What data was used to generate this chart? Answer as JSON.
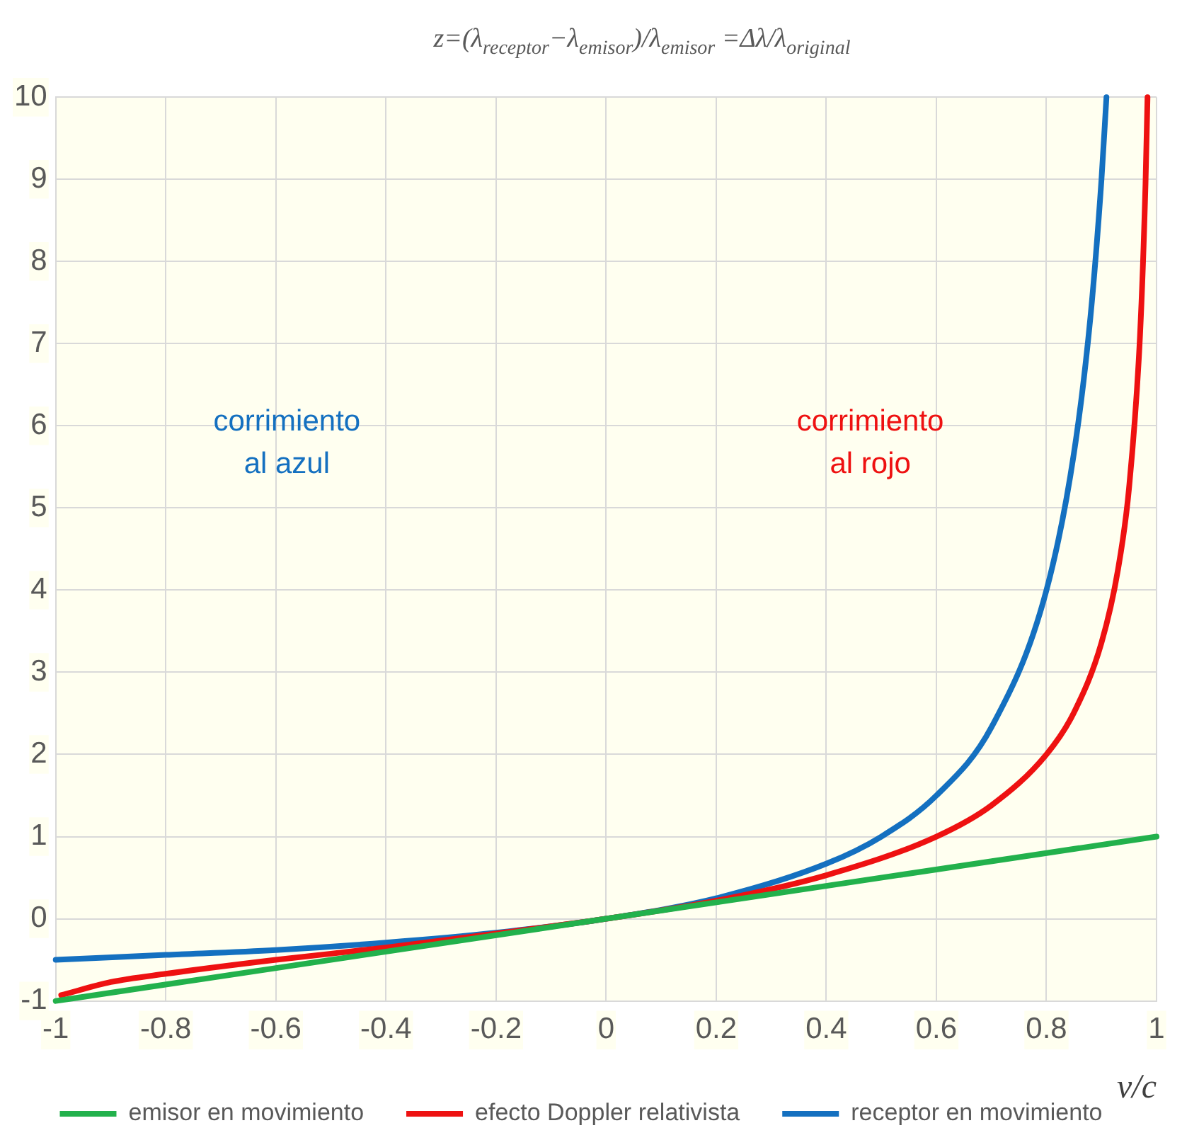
{
  "chart_data": {
    "type": "line",
    "title": "z=(λ$_{receptor}$−λ$_{emisor}$)/λ$_{emisor}$ =Δλ/λ$_{original}$",
    "xlabel": "v/c",
    "annotations": [
      "corrimiento\nal azul",
      "corrimiento\nal rojo"
    ],
    "xlim": [
      -1,
      1
    ],
    "xticks": [
      -1,
      -0.8,
      -0.6,
      -0.4,
      -0.2,
      0,
      0.2,
      0.4,
      0.6,
      0.8,
      1
    ],
    "ylim": [
      -1,
      10
    ],
    "yticks": [
      -1,
      0,
      1,
      2,
      3,
      4,
      5,
      6,
      7,
      8,
      9,
      10
    ],
    "grid": true,
    "legend": "bottom",
    "marker": "none",
    "line_style": "solid",
    "series": [
      {
        "name": "emisor en movimiento",
        "color": "#22b14c",
        "x": [
          -1,
          0,
          1
        ],
        "values": [
          -1,
          0,
          1
        ]
      },
      {
        "name": "efecto Doppler relativista",
        "color": "#ee1111",
        "x": [
          -0.99,
          -0.9,
          -0.8,
          -0.6,
          -0.4,
          -0.2,
          0,
          0.2,
          0.4,
          0.6,
          0.7,
          0.8,
          0.85,
          0.9,
          0.93,
          0.95,
          0.97,
          0.98,
          0.9836
        ],
        "values": [
          -0.93,
          -0.77,
          -0.67,
          -0.5,
          -0.35,
          -0.18,
          0,
          0.22,
          0.53,
          1,
          1.38,
          2,
          2.51,
          3.36,
          4.25,
          5.24,
          7.1,
          8.95,
          10
        ]
      },
      {
        "name": "receptor en movimiento",
        "color": "#1470c0",
        "x": [
          -1,
          -0.8,
          -0.6,
          -0.4,
          -0.2,
          0,
          0.2,
          0.4,
          0.5,
          0.6,
          0.7,
          0.8,
          0.85,
          0.88,
          0.9,
          0.909
        ],
        "values": [
          -0.5,
          -0.44,
          -0.38,
          -0.29,
          -0.17,
          0,
          0.25,
          0.67,
          1,
          1.5,
          2.33,
          4,
          5.67,
          7.33,
          9,
          10
        ]
      }
    ]
  }
}
